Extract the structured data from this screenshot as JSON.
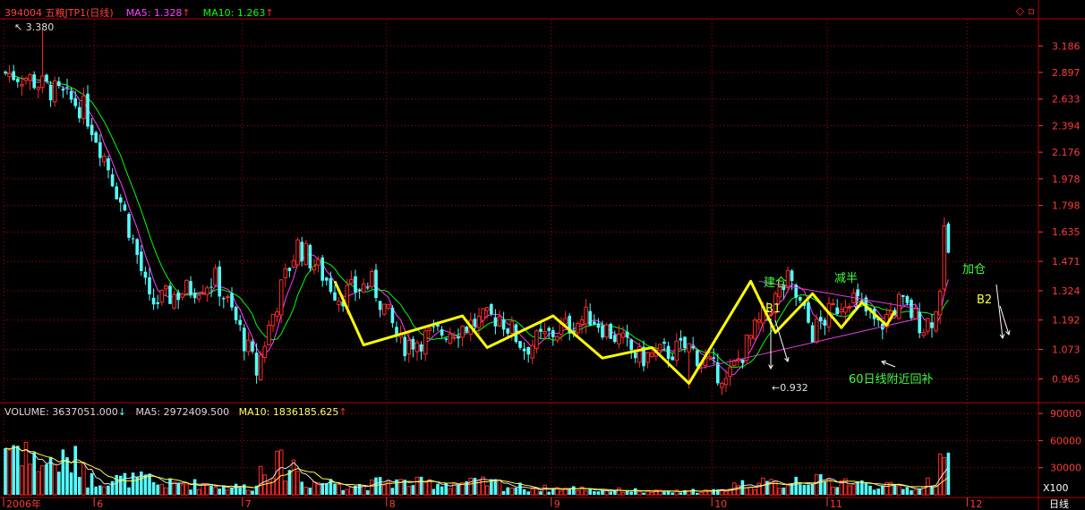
{
  "header": {
    "code": "394004",
    "name": "五粮JTP1(日线)",
    "ma5_label": "MA5: 1.328",
    "ma10_label": "MA10: 1.263",
    "arrow": "↑"
  },
  "volume_header": {
    "volume_label": "VOLUME: 3637051.000",
    "down_arrow": "↓",
    "ma5_label": "MA5: 2972409.500",
    "ma10_label": "MA10: 1836185.625",
    "up_arrow": "↑"
  },
  "colors": {
    "up": "#ff2a2a",
    "down": "#54ffff",
    "ma5": "#ff40ff",
    "ma10": "#00ff00",
    "zigzag": "#ffff00",
    "grid": "#b00000",
    "axis_text": "#ff3b3b"
  },
  "chart_data": {
    "type": "candlestick",
    "price_axis": {
      "ticks": [
        "3.186",
        "2.897",
        "2.633",
        "2.394",
        "2.176",
        "1.978",
        "1.798",
        "1.635",
        "1.471",
        "1.324",
        "1.192",
        "1.073",
        "0.965"
      ],
      "ylim": [
        0.895,
        3.5
      ]
    },
    "volume_axis": {
      "ticks": [
        "90000",
        "60000",
        "30000"
      ],
      "multiplier": "X100",
      "ylim": [
        0,
        100000
      ]
    },
    "x_axis_labels": [
      "2006年",
      "6",
      "7",
      "8",
      "9",
      "10",
      "11",
      "12"
    ],
    "period_label": "日线",
    "annotations": {
      "high": "3.380",
      "low": "0.932",
      "build": "建仓",
      "b1": "B1",
      "halve": "减半",
      "add": "加仓",
      "b2": "B2",
      "pullback": "60日线附近回补"
    },
    "zigzag": [
      {
        "day": 80,
        "price": 1.37
      },
      {
        "day": 87,
        "price": 1.09
      },
      {
        "day": 111,
        "price": 1.21
      },
      {
        "day": 117,
        "price": 1.08
      },
      {
        "day": 133,
        "price": 1.21
      },
      {
        "day": 145,
        "price": 1.04
      },
      {
        "day": 157,
        "price": 1.08
      },
      {
        "day": 166,
        "price": 0.95
      },
      {
        "day": 181,
        "price": 1.37
      },
      {
        "day": 187,
        "price": 1.14
      },
      {
        "day": 196,
        "price": 1.31
      },
      {
        "day": 203,
        "price": 1.16
      },
      {
        "day": 208,
        "price": 1.27
      },
      {
        "day": 214,
        "price": 1.17
      },
      {
        "day": 216,
        "price": 1.23
      }
    ],
    "channel": [
      {
        "from": {
          "day": 183,
          "price": 1.37
        },
        "to": {
          "day": 222,
          "price": 1.24
        }
      },
      {
        "from": {
          "day": 168,
          "price": 1.0
        },
        "to": {
          "day": 222,
          "price": 1.2
        }
      }
    ],
    "segments": [
      {
        "days": 6,
        "start": 2.9,
        "end": 2.85,
        "vol": 55000
      },
      {
        "days": 14,
        "start": 2.85,
        "end": 2.55,
        "vol": 36000
      },
      {
        "days": 16,
        "start": 2.55,
        "end": 1.26,
        "vol": 17000
      },
      {
        "days": 16,
        "start": 1.26,
        "end": 1.38,
        "vol": 12000
      },
      {
        "days": 10,
        "start": 1.38,
        "end": 0.99,
        "vol": 9000
      },
      {
        "days": 10,
        "start": 0.99,
        "end": 1.56,
        "vol": 32000
      },
      {
        "days": 10,
        "start": 1.56,
        "end": 1.3,
        "vol": 14000
      },
      {
        "days": 8,
        "start": 1.3,
        "end": 1.36,
        "vol": 11000
      },
      {
        "days": 7,
        "start": 1.36,
        "end": 1.09,
        "vol": 14000
      },
      {
        "days": 24,
        "start": 1.09,
        "end": 1.21,
        "vol": 13000
      },
      {
        "days": 6,
        "start": 1.21,
        "end": 1.08,
        "vol": 9000
      },
      {
        "days": 16,
        "start": 1.08,
        "end": 1.21,
        "vol": 7000
      },
      {
        "days": 12,
        "start": 1.21,
        "end": 1.04,
        "vol": 5000
      },
      {
        "days": 12,
        "start": 1.04,
        "end": 1.08,
        "vol": 3500
      },
      {
        "days": 9,
        "start": 1.08,
        "end": 0.95,
        "vol": 4500
      },
      {
        "days": 15,
        "start": 0.95,
        "end": 1.37,
        "vol": 12000
      },
      {
        "days": 6,
        "start": 1.37,
        "end": 1.14,
        "vol": 18000
      },
      {
        "days": 9,
        "start": 1.14,
        "end": 1.31,
        "vol": 15000
      },
      {
        "days": 7,
        "start": 1.31,
        "end": 1.16,
        "vol": 12000
      },
      {
        "days": 5,
        "start": 1.16,
        "end": 1.27,
        "vol": 9000
      },
      {
        "days": 6,
        "start": 1.27,
        "end": 1.17,
        "vol": 8000
      },
      {
        "days": 3,
        "start": 1.17,
        "end": 1.22,
        "vol": 15000
      },
      {
        "days": 1,
        "start": 1.22,
        "end": 1.36,
        "vol": 30000
      },
      {
        "days": 1,
        "start": 1.36,
        "end": 1.6,
        "vol": 86000
      },
      {
        "days": 1,
        "start": 1.6,
        "end": 1.52,
        "vol": 36000
      }
    ]
  }
}
